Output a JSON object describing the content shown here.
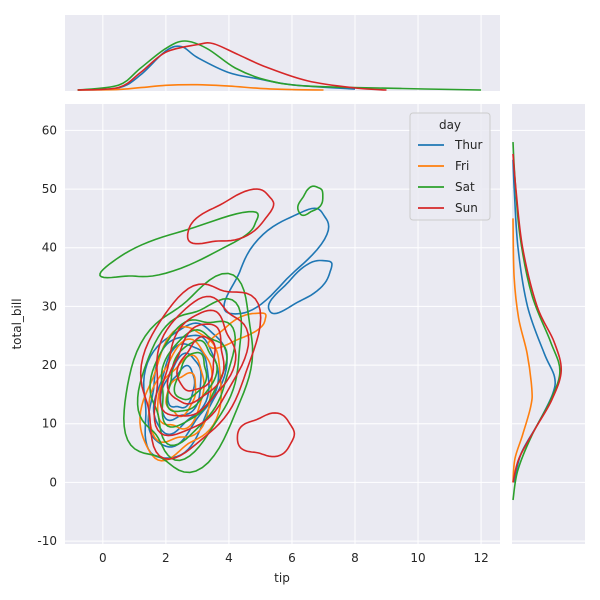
{
  "chart_data": {
    "type": "kde-jointplot",
    "xlabel": "tip",
    "ylabel": "total_bill",
    "x_ticks": [
      0,
      2,
      4,
      6,
      8,
      10,
      12
    ],
    "y_ticks": [
      -10,
      0,
      10,
      20,
      30,
      40,
      50,
      60
    ],
    "xlim": [
      -1.2,
      12.6
    ],
    "ylim": [
      -10.5,
      64.5
    ],
    "legend": {
      "title": "day",
      "placement": "upper-right"
    },
    "series": [
      {
        "name": "Thur",
        "color": "#1f77b4",
        "center": [
          2.5,
          16
        ],
        "peak_density": 0.62,
        "contour_levels": [
          {
            "sx": 1.2,
            "sy": 11.5,
            "rot": 58,
            "level": 1
          },
          {
            "sx": 1.0,
            "sy": 9.5,
            "rot": 58,
            "level": 2
          },
          {
            "sx": 0.8,
            "sy": 7.5,
            "rot": 58,
            "level": 3
          },
          {
            "sx": 0.6,
            "sy": 5.5,
            "rot": 58,
            "level": 4
          },
          {
            "sx": 0.4,
            "sy": 3.5,
            "rot": 58,
            "level": 5
          }
        ],
        "extra_contours": [
          {
            "cx": 5.5,
            "cy": 38,
            "sx": 1.0,
            "sy": 9.0,
            "rot": 25
          },
          {
            "cx": 6.3,
            "cy": 33.5,
            "sx": 0.6,
            "sy": 4.5,
            "rot": 20
          }
        ],
        "marginal_x": [
          [
            -0.8,
            0.0
          ],
          [
            0.5,
            0.05
          ],
          [
            1.2,
            0.35
          ],
          [
            2.0,
            0.9
          ],
          [
            2.5,
            1.0
          ],
          [
            3.0,
            0.75
          ],
          [
            4.0,
            0.4
          ],
          [
            5.0,
            0.25
          ],
          [
            6.0,
            0.12
          ],
          [
            8.0,
            0.02
          ]
        ],
        "marginal_y": [
          [
            0,
            0.02
          ],
          [
            5,
            0.2
          ],
          [
            10,
            0.6
          ],
          [
            15,
            0.95
          ],
          [
            18,
            1.0
          ],
          [
            22,
            0.75
          ],
          [
            30,
            0.35
          ],
          [
            40,
            0.12
          ],
          [
            50,
            0.03
          ],
          [
            55,
            0.0
          ]
        ]
      },
      {
        "name": "Fri",
        "color": "#ff7f0e",
        "center": [
          2.5,
          15
        ],
        "peak_density": 0.28,
        "contour_levels": [
          {
            "sx": 1.2,
            "sy": 11.0,
            "rot": 60,
            "level": 1
          },
          {
            "sx": 0.95,
            "sy": 8.5,
            "rot": 60,
            "level": 2
          },
          {
            "sx": 0.7,
            "sy": 6.0,
            "rot": 60,
            "level": 3
          },
          {
            "sx": 0.45,
            "sy": 3.5,
            "rot": 60,
            "level": 4
          }
        ],
        "extra_contours": [
          {
            "cx": 4.3,
            "cy": 26,
            "sx": 0.55,
            "sy": 3.0,
            "rot": 15
          }
        ],
        "marginal_x": [
          [
            -0.8,
            0.0
          ],
          [
            0.5,
            0.03
          ],
          [
            1.2,
            0.12
          ],
          [
            2.0,
            0.24
          ],
          [
            3.0,
            0.27
          ],
          [
            4.0,
            0.2
          ],
          [
            5.0,
            0.08
          ],
          [
            6.0,
            0.02
          ],
          [
            7.0,
            0.0
          ]
        ],
        "marginal_y": [
          [
            0,
            0.0
          ],
          [
            4,
            0.1
          ],
          [
            8,
            0.5
          ],
          [
            13,
            0.95
          ],
          [
            16,
            1.0
          ],
          [
            22,
            0.75
          ],
          [
            28,
            0.3
          ],
          [
            35,
            0.06
          ],
          [
            45,
            0.0
          ]
        ]
      },
      {
        "name": "Sat",
        "color": "#2ca02c",
        "center": [
          2.8,
          18
        ],
        "peak_density": 0.7,
        "contour_levels": [
          {
            "sx": 1.9,
            "sy": 16.0,
            "rot": 55,
            "level": 1
          },
          {
            "sx": 1.5,
            "sy": 13.0,
            "rot": 55,
            "level": 2
          },
          {
            "sx": 1.2,
            "sy": 10.5,
            "rot": 55,
            "level": 3
          },
          {
            "sx": 0.95,
            "sy": 8.0,
            "rot": 55,
            "level": 4
          },
          {
            "sx": 0.7,
            "sy": 6.0,
            "rot": 55,
            "level": 5
          },
          {
            "sx": 0.45,
            "sy": 4.0,
            "rot": 55,
            "level": 6
          }
        ],
        "extra_contours": [
          {
            "cx": 6.6,
            "cy": 48,
            "sx": 0.35,
            "sy": 2.4,
            "rot": 40
          },
          {
            "cx": 2.5,
            "cy": 40,
            "sx": 1.4,
            "sy": 5.5,
            "rot": 10
          }
        ],
        "marginal_x": [
          [
            -0.8,
            0.0
          ],
          [
            0.5,
            0.1
          ],
          [
            1.2,
            0.45
          ],
          [
            2.0,
            0.85
          ],
          [
            2.6,
            1.0
          ],
          [
            3.3,
            0.85
          ],
          [
            4.2,
            0.45
          ],
          [
            5.2,
            0.2
          ],
          [
            6.5,
            0.08
          ],
          [
            9.5,
            0.03
          ],
          [
            12,
            0.0
          ]
        ],
        "marginal_y": [
          [
            -3,
            0.0
          ],
          [
            2,
            0.1
          ],
          [
            8,
            0.4
          ],
          [
            14,
            0.8
          ],
          [
            19,
            1.0
          ],
          [
            24,
            0.8
          ],
          [
            32,
            0.4
          ],
          [
            42,
            0.15
          ],
          [
            52,
            0.04
          ],
          [
            58,
            0.0
          ]
        ]
      },
      {
        "name": "Sun",
        "color": "#d62728",
        "center": [
          3.0,
          20
        ],
        "peak_density": 0.72,
        "contour_levels": [
          {
            "sx": 1.7,
            "sy": 14.5,
            "rot": 55,
            "level": 1
          },
          {
            "sx": 1.35,
            "sy": 11.5,
            "rot": 55,
            "level": 2
          },
          {
            "sx": 1.05,
            "sy": 9.0,
            "rot": 55,
            "level": 3
          },
          {
            "sx": 0.8,
            "sy": 6.8,
            "rot": 55,
            "level": 4
          },
          {
            "sx": 0.55,
            "sy": 4.6,
            "rot": 55,
            "level": 5
          }
        ],
        "extra_contours": [
          {
            "cx": 4.1,
            "cy": 45,
            "sx": 1.1,
            "sy": 4.5,
            "rot": 20
          },
          {
            "cx": 5.2,
            "cy": 8,
            "sx": 0.9,
            "sy": 3.5,
            "rot": 70
          }
        ],
        "marginal_x": [
          [
            -0.8,
            0.0
          ],
          [
            0.5,
            0.05
          ],
          [
            1.2,
            0.35
          ],
          [
            2.0,
            0.75
          ],
          [
            3.0,
            0.9
          ],
          [
            3.5,
            0.92
          ],
          [
            4.3,
            0.7
          ],
          [
            5.2,
            0.45
          ],
          [
            6.5,
            0.18
          ],
          [
            8.0,
            0.04
          ],
          [
            9.0,
            0.0
          ]
        ],
        "marginal_y": [
          [
            0,
            0.0
          ],
          [
            4,
            0.12
          ],
          [
            9,
            0.45
          ],
          [
            14,
            0.8
          ],
          [
            19,
            1.0
          ],
          [
            24,
            0.85
          ],
          [
            30,
            0.5
          ],
          [
            40,
            0.2
          ],
          [
            50,
            0.06
          ],
          [
            56,
            0.0
          ]
        ]
      }
    ],
    "background": "#eaeaf2",
    "grid": true
  }
}
